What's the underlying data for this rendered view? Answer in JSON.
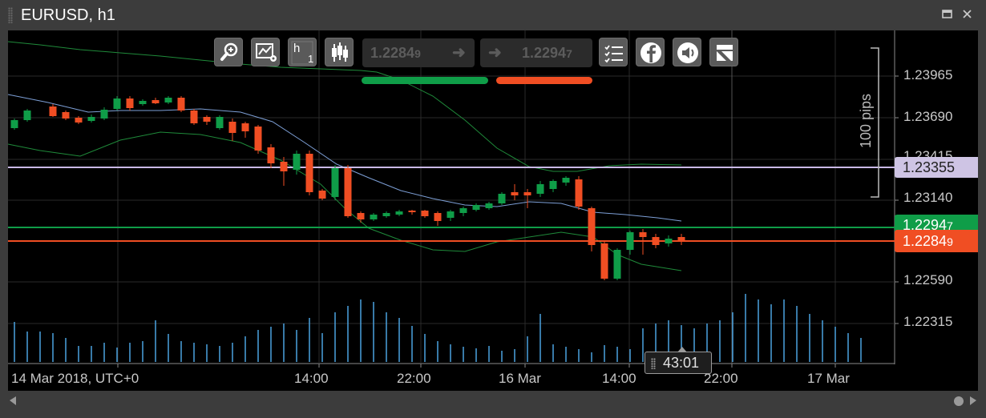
{
  "window": {
    "title": "EURUSD, h1"
  },
  "toolbar": {
    "buttons": [
      {
        "name": "zoom-icon"
      },
      {
        "name": "chart-settings-icon"
      },
      {
        "name": "timeframe-icon",
        "label": "h",
        "sub": "1"
      },
      {
        "name": "candles-icon"
      },
      {
        "name": "list-icon"
      },
      {
        "name": "facebook-icon"
      },
      {
        "name": "sound-icon"
      },
      {
        "name": "templates-icon"
      }
    ],
    "sell_price": "1.2284",
    "sell_price_small": "9",
    "buy_price": "1.2294",
    "buy_price_small": "7"
  },
  "price_axis": {
    "labels": [
      "1.23965",
      "1.23690",
      "1.23415",
      "1.23140",
      "1.22590",
      "1.22315"
    ]
  },
  "time_axis": {
    "labels": [
      "14 Mar 2018, UTC+0",
      "14:00",
      "22:00",
      "16 Mar",
      "14:00",
      "22:00",
      "17 Mar"
    ]
  },
  "tags": {
    "line_price": "1.23355",
    "ask_price": "1.2294",
    "ask_small": "7",
    "bid_price": "1.2284",
    "bid_small": "9"
  },
  "ruler": {
    "label": "100 pips"
  },
  "countdown": {
    "value": "43:01"
  },
  "colors": {
    "bull": "#0f9d48",
    "bear": "#f04e23",
    "ma": "#7d9fd6",
    "bollinger": "#1f8a3a",
    "line_marker": "#c9b8e6",
    "volume": "#4aa3e0"
  }
}
